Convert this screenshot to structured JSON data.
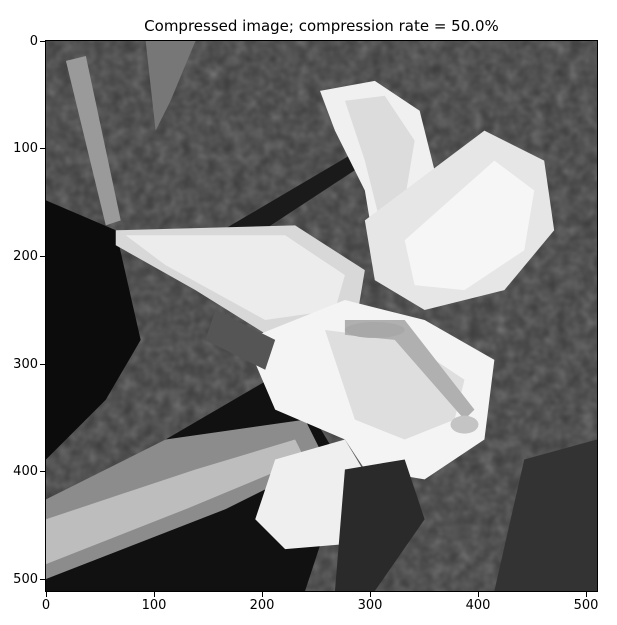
{
  "figure": {
    "title": "Compressed image; compression rate = 50.0%"
  },
  "axes": {
    "y_ticks": [
      "0",
      "100",
      "200",
      "300",
      "400",
      "500"
    ],
    "x_ticks": [
      "0",
      "100",
      "200",
      "300",
      "400",
      "500"
    ]
  },
  "colors": {
    "background_dark": "#3a3a3a",
    "petal_light": "#f2f2f2",
    "shadow": "#0a0a0a",
    "mid_gray": "#8a8a8a"
  }
}
